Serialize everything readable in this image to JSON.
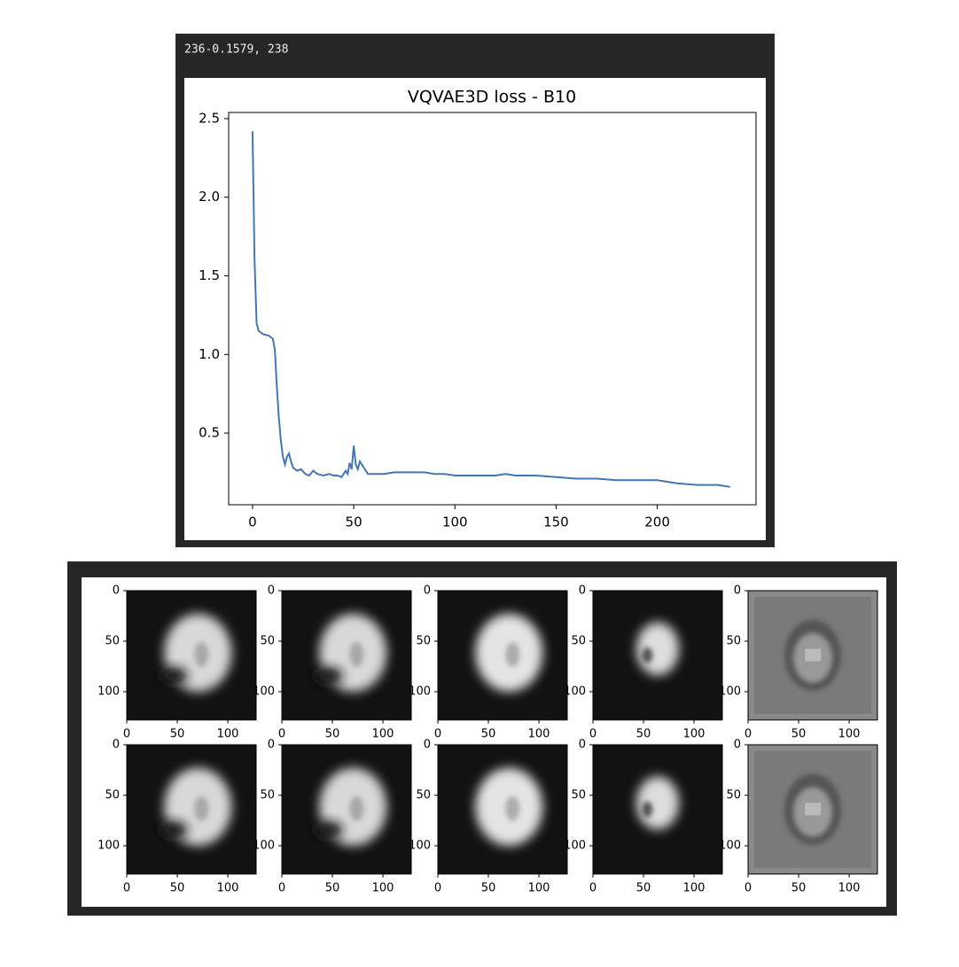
{
  "output_text": "236-0.1579, 238",
  "chart_data": {
    "type": "line",
    "title": "VQVAE3D loss - B10",
    "x": [
      0,
      1,
      2,
      3,
      5,
      8,
      10,
      11,
      12,
      13,
      14,
      15,
      16,
      17,
      18,
      19,
      20,
      22,
      24,
      26,
      28,
      30,
      32,
      35,
      38,
      40,
      42,
      44,
      46,
      47,
      48,
      49,
      50,
      51,
      52,
      53,
      55,
      57,
      60,
      65,
      70,
      75,
      80,
      85,
      90,
      95,
      100,
      110,
      120,
      125,
      130,
      140,
      150,
      160,
      170,
      180,
      190,
      200,
      210,
      220,
      230,
      236
    ],
    "values": [
      2.42,
      1.6,
      1.2,
      1.15,
      1.13,
      1.12,
      1.1,
      1.03,
      0.8,
      0.6,
      0.45,
      0.35,
      0.3,
      0.35,
      0.37,
      0.32,
      0.28,
      0.26,
      0.27,
      0.24,
      0.23,
      0.26,
      0.24,
      0.23,
      0.24,
      0.23,
      0.23,
      0.22,
      0.26,
      0.24,
      0.31,
      0.27,
      0.42,
      0.3,
      0.27,
      0.32,
      0.28,
      0.24,
      0.24,
      0.24,
      0.25,
      0.25,
      0.25,
      0.25,
      0.24,
      0.24,
      0.23,
      0.23,
      0.23,
      0.24,
      0.23,
      0.23,
      0.22,
      0.21,
      0.21,
      0.2,
      0.2,
      0.2,
      0.18,
      0.17,
      0.17,
      0.158
    ],
    "color": "#4477b0",
    "xlim": [
      -11.8,
      248.8
    ],
    "ylim": [
      0.044,
      2.539
    ],
    "xticks": [
      0,
      50,
      100,
      150,
      200
    ],
    "yticks": [
      0.5,
      {
        "value": 1,
        "label": "1.0"
      },
      1.5,
      {
        "value": 2,
        "label": "2.0"
      },
      2.5
    ],
    "grid": false
  },
  "image_grid": {
    "xlim": [
      0,
      128
    ],
    "ylim": [
      0,
      128
    ],
    "xticks": [
      0,
      50,
      100
    ],
    "yticks": [
      0,
      50,
      100
    ]
  }
}
